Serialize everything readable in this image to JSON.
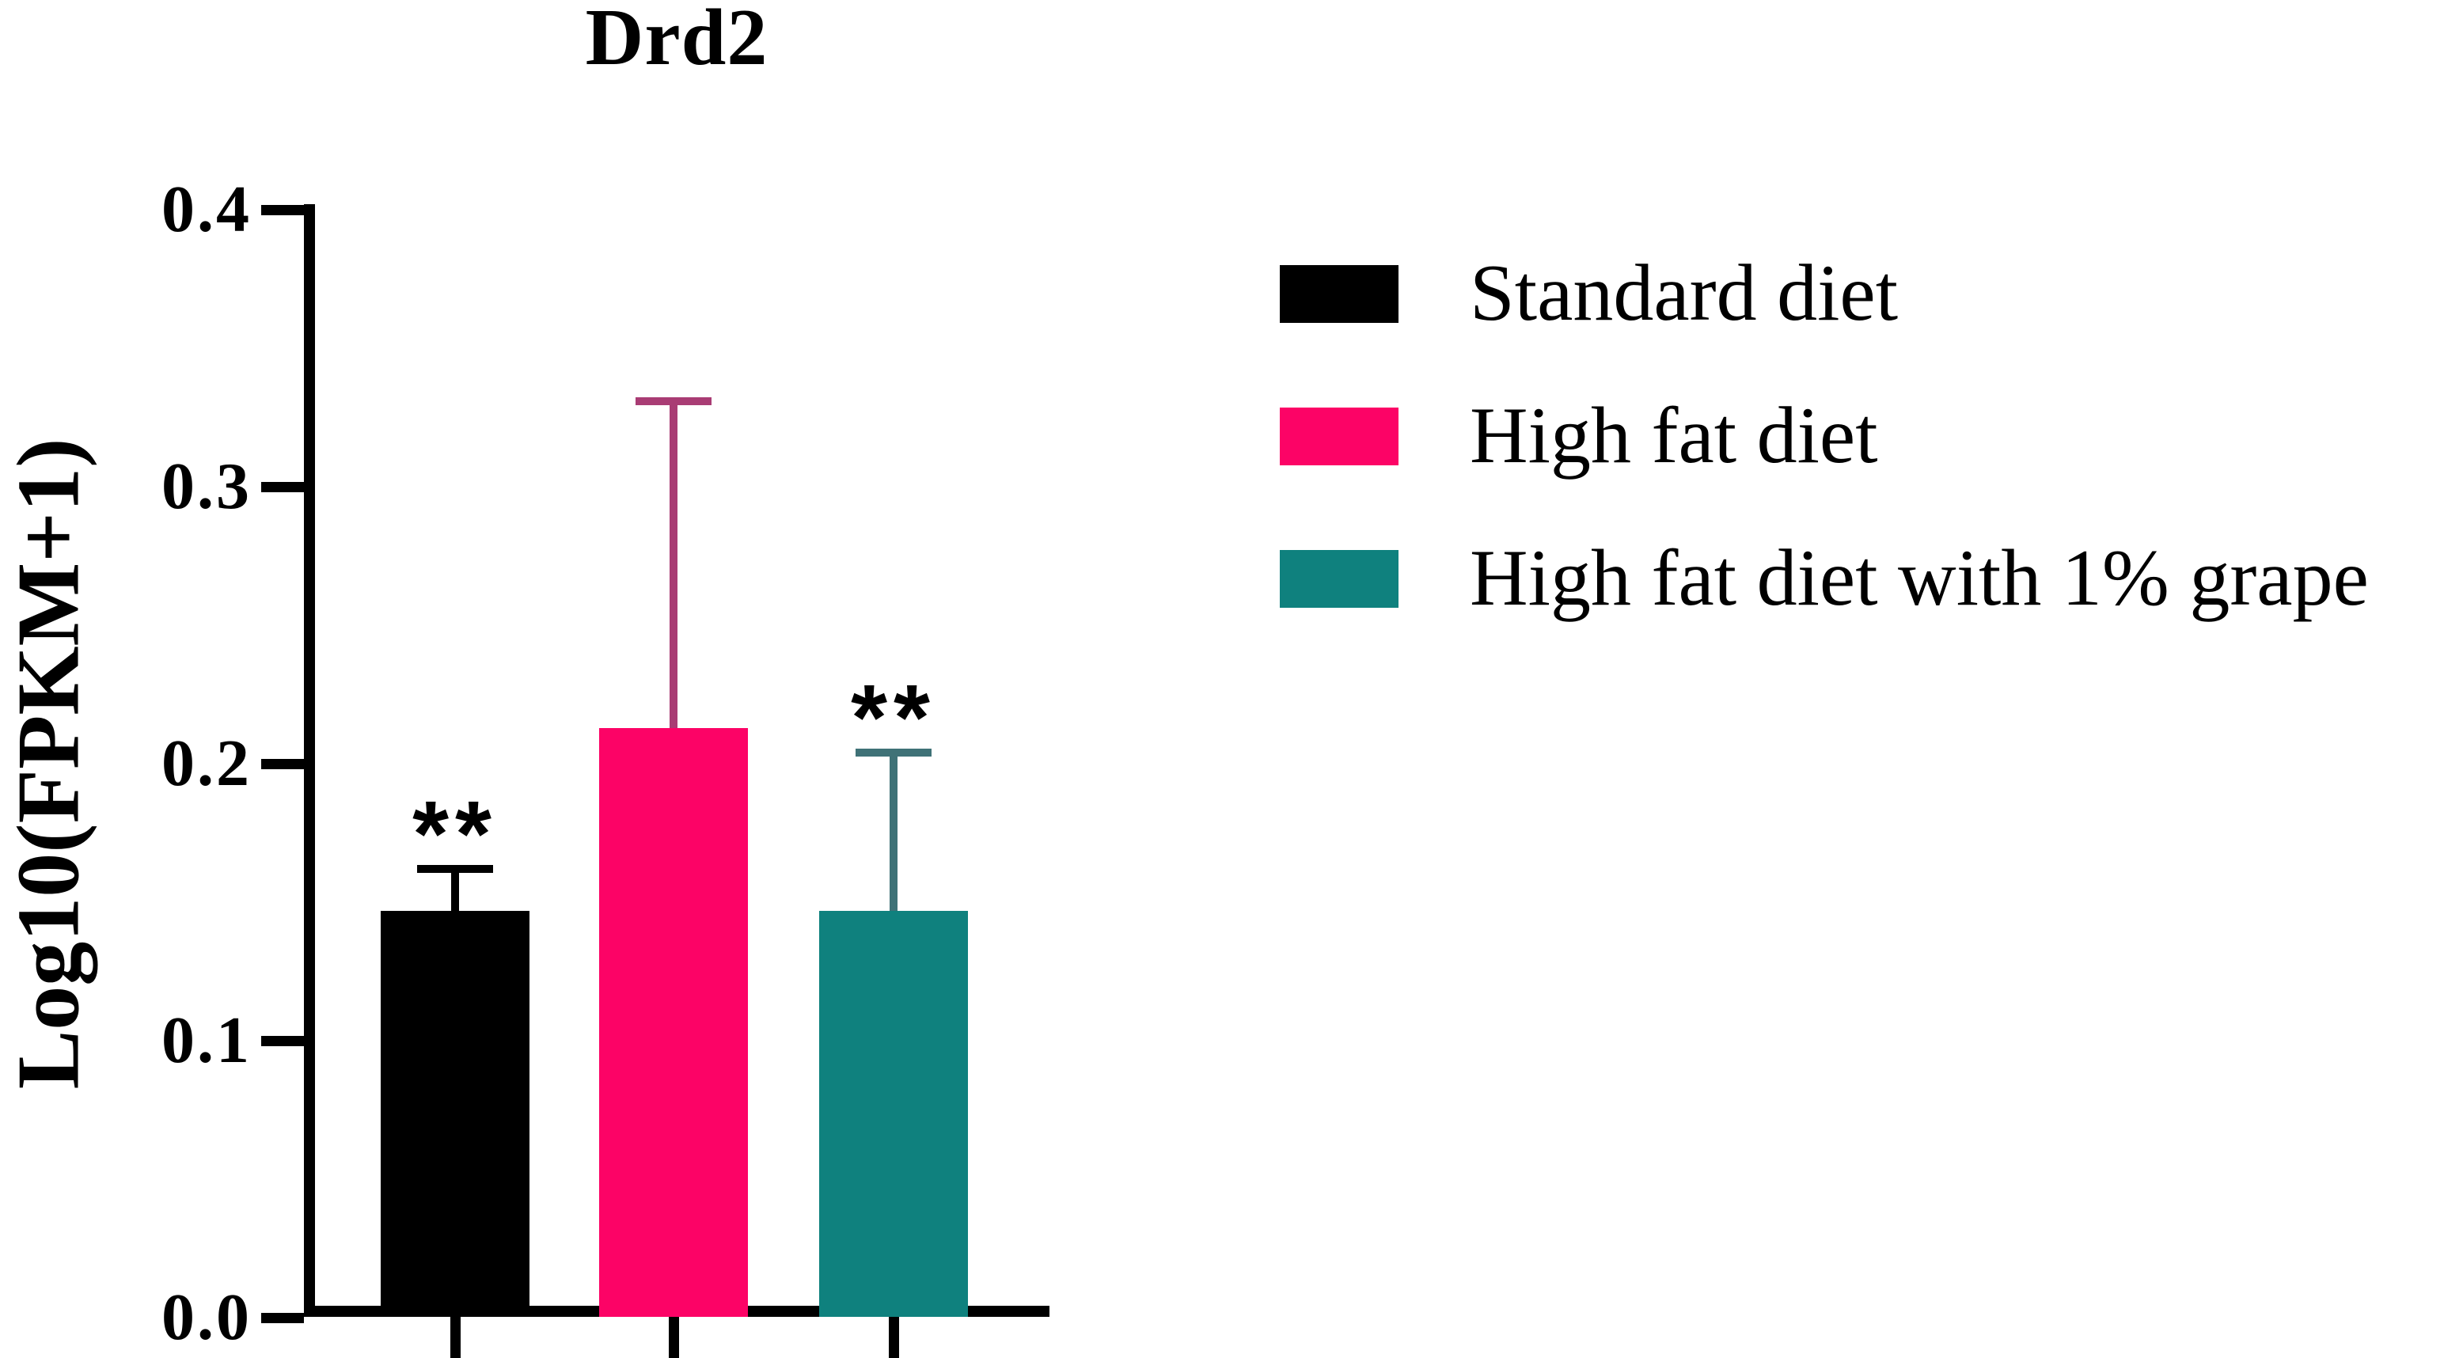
{
  "figure": {
    "background": "#ffffff"
  },
  "chart_data": {
    "type": "bar",
    "title": "Drd2",
    "ylabel": "Log10(FPKM+1)",
    "xlabel": "",
    "ylim": [
      0.0,
      0.4
    ],
    "yticks": [
      {
        "value": 0.0,
        "label": "0.0"
      },
      {
        "value": 0.1,
        "label": "0.1"
      },
      {
        "value": 0.2,
        "label": "0.2"
      },
      {
        "value": 0.3,
        "label": "0.3"
      },
      {
        "value": 0.4,
        "label": "0.4"
      }
    ],
    "grid": false,
    "legend_position": "right",
    "error_bars": "upper SD only, with caps",
    "categories": [
      "Standard diet",
      "High fat diet",
      "High fat diet with 1% grape"
    ],
    "series": [
      {
        "name": "Standard diet",
        "value": 0.147,
        "error_upper": 0.162,
        "significance": "**",
        "color": "#000000",
        "error_color": "#000000"
      },
      {
        "name": "High fat diet",
        "value": 0.213,
        "error_upper": 0.331,
        "significance": "",
        "color": "#FC0366",
        "error_color": "#A93C74"
      },
      {
        "name": "High fat diet with 1% grape",
        "value": 0.147,
        "error_upper": 0.204,
        "significance": "**",
        "color": "#0F817E",
        "error_color": "#3F7277"
      }
    ],
    "legend": [
      {
        "label": "Standard diet",
        "color": "#000000"
      },
      {
        "label": "High fat diet",
        "color": "#FC0366"
      },
      {
        "label": "High fat diet with 1% grape",
        "color": "#0F817E"
      }
    ]
  }
}
